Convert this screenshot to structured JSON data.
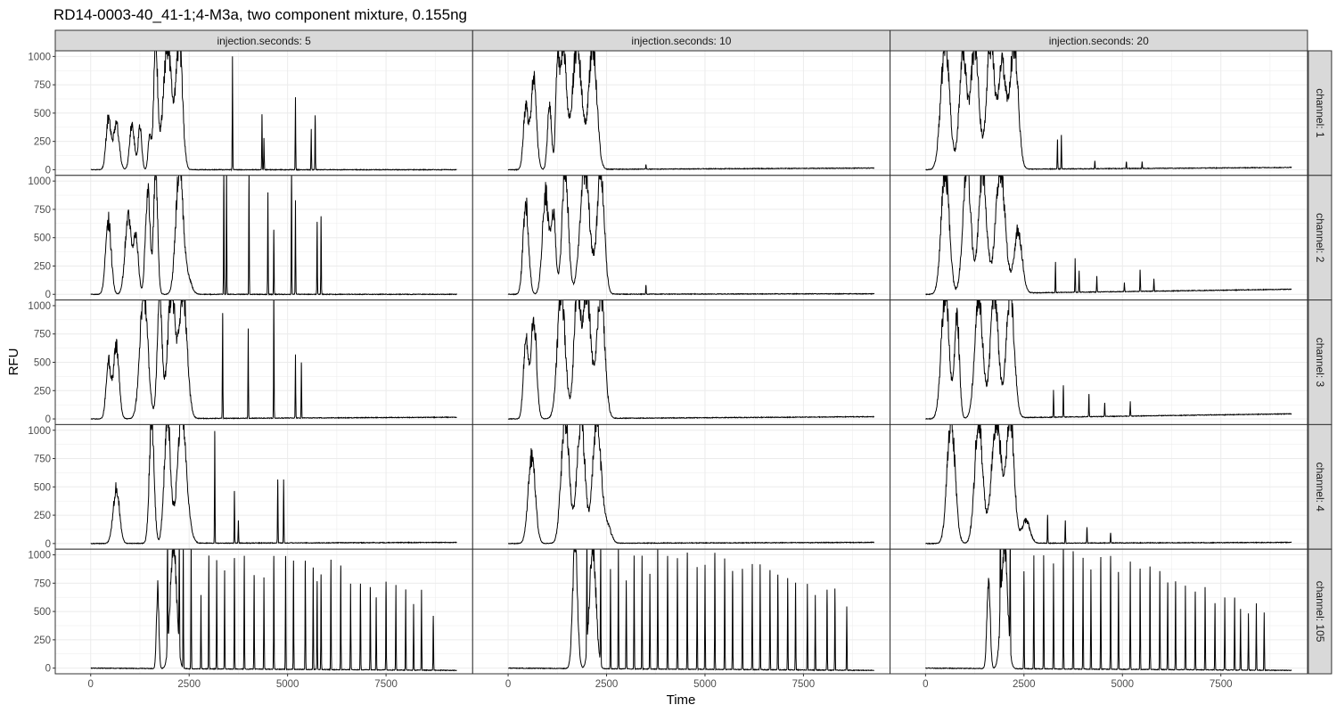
{
  "chart_data": {
    "type": "line",
    "title": "RD14-0003-40_41-1;4-M3a, two component mixture, 0.155ng",
    "xlabel": "Time",
    "ylabel": "RFU",
    "xlim": [
      -900,
      9700
    ],
    "ylim": [
      -50,
      1050
    ],
    "x_ticks": [
      0,
      2500,
      5000,
      7500
    ],
    "x_tick_labels": [
      "0",
      "2500",
      "5000",
      "7500"
    ],
    "y_ticks": [
      0,
      250,
      500,
      750,
      1000
    ],
    "y_tick_labels": [
      "0",
      "250",
      "500",
      "750",
      "1000"
    ],
    "grid": true,
    "line_color": "#000000",
    "facet_columns": [
      {
        "label": "injection.seconds: 5"
      },
      {
        "label": "injection.seconds: 10"
      },
      {
        "label": "injection.seconds: 20"
      }
    ],
    "facet_rows": [
      {
        "label": "channel: 1"
      },
      {
        "label": "channel: 2"
      },
      {
        "label": "channel: 3"
      },
      {
        "label": "channel: 4"
      },
      {
        "label": "channel: 105"
      }
    ],
    "x_end": 9300,
    "panels": [
      [
        {
          "baseline": 0,
          "tail": 0,
          "humps": [
            [
              450,
              450,
              60
            ],
            [
              650,
              420,
              70
            ],
            [
              1050,
              410,
              60
            ],
            [
              1250,
              380,
              45
            ],
            [
              1500,
              300,
              40
            ],
            [
              1650,
              1100,
              50
            ],
            [
              1950,
              1100,
              110
            ],
            [
              2250,
              1100,
              80
            ]
          ],
          "spikes": [
            [
              3600,
              1000
            ],
            [
              4350,
              490
            ],
            [
              4400,
              280
            ],
            [
              5200,
              640
            ],
            [
              5600,
              360
            ],
            [
              5700,
              480
            ]
          ]
        },
        {
          "baseline": 0,
          "tail": 15,
          "humps": [
            [
              450,
              550,
              60
            ],
            [
              650,
              800,
              70
            ],
            [
              1050,
              580,
              50
            ],
            [
              1250,
              780,
              45
            ],
            [
              1400,
              1100,
              80
            ],
            [
              1750,
              1100,
              120
            ],
            [
              2150,
              1100,
              100
            ]
          ],
          "spikes": [
            [
              3500,
              40
            ]
          ]
        },
        {
          "baseline": 0,
          "tail": 20,
          "humps": [
            [
              500,
              1100,
              110
            ],
            [
              950,
              1050,
              90
            ],
            [
              1250,
              1100,
              100
            ],
            [
              1650,
              1100,
              100
            ],
            [
              1950,
              900,
              100
            ],
            [
              2250,
              1100,
              100
            ]
          ],
          "spikes": [
            [
              3350,
              260
            ],
            [
              3450,
              300
            ],
            [
              4300,
              70
            ],
            [
              5100,
              60
            ],
            [
              5500,
              60
            ]
          ]
        }
      ],
      [
        {
          "baseline": 0,
          "tail": 0,
          "humps": [
            [
              450,
              650,
              70
            ],
            [
              950,
              680,
              80
            ],
            [
              1150,
              500,
              60
            ],
            [
              1450,
              900,
              60
            ],
            [
              1650,
              1100,
              50
            ],
            [
              2250,
              1100,
              90
            ],
            [
              2450,
              150,
              100
            ]
          ],
          "spikes": [
            [
              3380,
              1100
            ],
            [
              3450,
              1100
            ],
            [
              4020,
              1100
            ],
            [
              4500,
              900
            ],
            [
              4650,
              570
            ],
            [
              5100,
              1100
            ],
            [
              5200,
              830
            ],
            [
              5750,
              640
            ],
            [
              5850,
              690
            ]
          ]
        },
        {
          "baseline": 0,
          "tail": 5,
          "humps": [
            [
              450,
              800,
              70
            ],
            [
              950,
              900,
              80
            ],
            [
              1150,
              700,
              60
            ],
            [
              1450,
              1100,
              80
            ],
            [
              1950,
              1100,
              120
            ],
            [
              2350,
              1100,
              90
            ]
          ],
          "spikes": [
            [
              3500,
              80
            ]
          ]
        },
        {
          "baseline": 0,
          "tail": 45,
          "humps": [
            [
              500,
              1100,
              100
            ],
            [
              1050,
              1100,
              100
            ],
            [
              1450,
              1100,
              100
            ],
            [
              1900,
              1100,
              120
            ],
            [
              2350,
              550,
              100
            ]
          ],
          "spikes": [
            [
              3300,
              270
            ],
            [
              3800,
              300
            ],
            [
              3900,
              190
            ],
            [
              4350,
              140
            ],
            [
              5050,
              80
            ],
            [
              5450,
              190
            ],
            [
              5800,
              110
            ]
          ]
        }
      ],
      [
        {
          "baseline": 0,
          "tail": 15,
          "humps": [
            [
              450,
              500,
              60
            ],
            [
              650,
              640,
              70
            ],
            [
              1350,
              1100,
              100
            ],
            [
              1750,
              1100,
              60
            ],
            [
              2050,
              1100,
              100
            ],
            [
              2350,
              1100,
              100
            ]
          ],
          "spikes": [
            [
              3350,
              930
            ],
            [
              4000,
              790
            ],
            [
              4650,
              1100
            ],
            [
              5200,
              560
            ],
            [
              5350,
              490
            ]
          ]
        },
        {
          "baseline": 0,
          "tail": 20,
          "humps": [
            [
              450,
              700,
              60
            ],
            [
              650,
              900,
              70
            ],
            [
              1350,
              1100,
              100
            ],
            [
              1750,
              1100,
              80
            ],
            [
              2000,
              1100,
              100
            ],
            [
              2350,
              1100,
              100
            ]
          ],
          "spikes": []
        },
        {
          "baseline": 0,
          "tail": 45,
          "humps": [
            [
              500,
              1100,
              100
            ],
            [
              800,
              900,
              60
            ],
            [
              1350,
              1100,
              100
            ],
            [
              1750,
              1100,
              100
            ],
            [
              2150,
              1100,
              100
            ]
          ],
          "spikes": [
            [
              3250,
              240
            ],
            [
              3500,
              280
            ],
            [
              4150,
              200
            ],
            [
              4550,
              120
            ],
            [
              5200,
              130
            ]
          ]
        }
      ],
      [
        {
          "baseline": 0,
          "tail": 10,
          "humps": [
            [
              650,
              490,
              80
            ],
            [
              1550,
              1100,
              60
            ],
            [
              1950,
              1100,
              80
            ],
            [
              2300,
              1100,
              100
            ],
            [
              2450,
              200,
              100
            ]
          ],
          "spikes": [
            [
              3150,
              990
            ],
            [
              3650,
              460
            ],
            [
              3750,
              200
            ],
            [
              4750,
              560
            ],
            [
              4900,
              560
            ]
          ]
        },
        {
          "baseline": 0,
          "tail": 10,
          "humps": [
            [
              600,
              760,
              90
            ],
            [
              1450,
              1100,
              100
            ],
            [
              1850,
              1100,
              100
            ],
            [
              2250,
              1100,
              100
            ],
            [
              2500,
              180,
              100
            ]
          ],
          "spikes": []
        },
        {
          "baseline": 0,
          "tail": 10,
          "humps": [
            [
              650,
              1100,
              100
            ],
            [
              1350,
              1100,
              100
            ],
            [
              1800,
              1100,
              120
            ],
            [
              2150,
              1100,
              100
            ],
            [
              2550,
              200,
              100
            ]
          ],
          "spikes": [
            [
              3100,
              250
            ],
            [
              3550,
              200
            ],
            [
              4100,
              140
            ],
            [
              4700,
              90
            ]
          ]
        }
      ],
      [
        {
          "baseline": 0,
          "tail": -20,
          "humps": [
            [
              1700,
              700,
              30
            ],
            [
              2100,
              1100,
              80
            ]
          ],
          "spikes": [
            [
              1950,
              1100
            ],
            [
              2250,
              1100
            ],
            [
              2350,
              1100
            ],
            [
              2550,
              1100
            ],
            [
              2800,
              650
            ],
            [
              3000,
              1000
            ],
            [
              3200,
              960
            ],
            [
              3400,
              870
            ],
            [
              3650,
              980
            ],
            [
              3900,
              1000
            ],
            [
              4150,
              830
            ],
            [
              4400,
              810
            ],
            [
              4650,
              1000
            ],
            [
              4950,
              1000
            ],
            [
              5150,
              960
            ],
            [
              5450,
              960
            ],
            [
              5650,
              900
            ],
            [
              5750,
              780
            ],
            [
              5850,
              840
            ],
            [
              6100,
              970
            ],
            [
              6350,
              920
            ],
            [
              6600,
              760
            ],
            [
              6850,
              760
            ],
            [
              7100,
              730
            ],
            [
              7250,
              640
            ],
            [
              7500,
              780
            ],
            [
              7750,
              750
            ],
            [
              8000,
              710
            ],
            [
              8200,
              580
            ],
            [
              8400,
              710
            ],
            [
              8700,
              480
            ]
          ]
        },
        {
          "baseline": 0,
          "tail": -20,
          "humps": [
            [
              1700,
              1100,
              60
            ],
            [
              2150,
              1100,
              80
            ]
          ],
          "spikes": [
            [
              2000,
              1100
            ],
            [
              2350,
              1100
            ],
            [
              2600,
              880
            ],
            [
              2800,
              1100
            ],
            [
              3000,
              780
            ],
            [
              3200,
              1000
            ],
            [
              3400,
              1000
            ],
            [
              3600,
              840
            ],
            [
              3800,
              1100
            ],
            [
              4050,
              1000
            ],
            [
              4300,
              980
            ],
            [
              4550,
              1030
            ],
            [
              4800,
              900
            ],
            [
              5000,
              920
            ],
            [
              5250,
              1030
            ],
            [
              5500,
              980
            ],
            [
              5700,
              870
            ],
            [
              5950,
              890
            ],
            [
              6200,
              930
            ],
            [
              6400,
              930
            ],
            [
              6650,
              880
            ],
            [
              6850,
              840
            ],
            [
              7100,
              810
            ],
            [
              7300,
              770
            ],
            [
              7600,
              760
            ],
            [
              7800,
              660
            ],
            [
              8100,
              710
            ],
            [
              8300,
              720
            ],
            [
              8600,
              560
            ]
          ]
        },
        {
          "baseline": 0,
          "tail": -20,
          "humps": [
            [
              1600,
              800,
              40
            ],
            [
              2000,
              1100,
              80
            ]
          ],
          "spikes": [
            [
              1900,
              1100
            ],
            [
              2150,
              1100
            ],
            [
              2500,
              860
            ],
            [
              2750,
              1000
            ],
            [
              3000,
              1000
            ],
            [
              3250,
              930
            ],
            [
              3500,
              1100
            ],
            [
              3750,
              1040
            ],
            [
              4000,
              980
            ],
            [
              4200,
              880
            ],
            [
              4450,
              990
            ],
            [
              4700,
              1000
            ],
            [
              4900,
              860
            ],
            [
              5200,
              950
            ],
            [
              5450,
              890
            ],
            [
              5700,
              910
            ],
            [
              5950,
              870
            ],
            [
              6150,
              770
            ],
            [
              6350,
              780
            ],
            [
              6600,
              740
            ],
            [
              6850,
              690
            ],
            [
              7100,
              730
            ],
            [
              7350,
              590
            ],
            [
              7600,
              640
            ],
            [
              7850,
              640
            ],
            [
              8000,
              540
            ],
            [
              8200,
              500
            ],
            [
              8400,
              590
            ],
            [
              8600,
              510
            ]
          ]
        }
      ]
    ]
  }
}
